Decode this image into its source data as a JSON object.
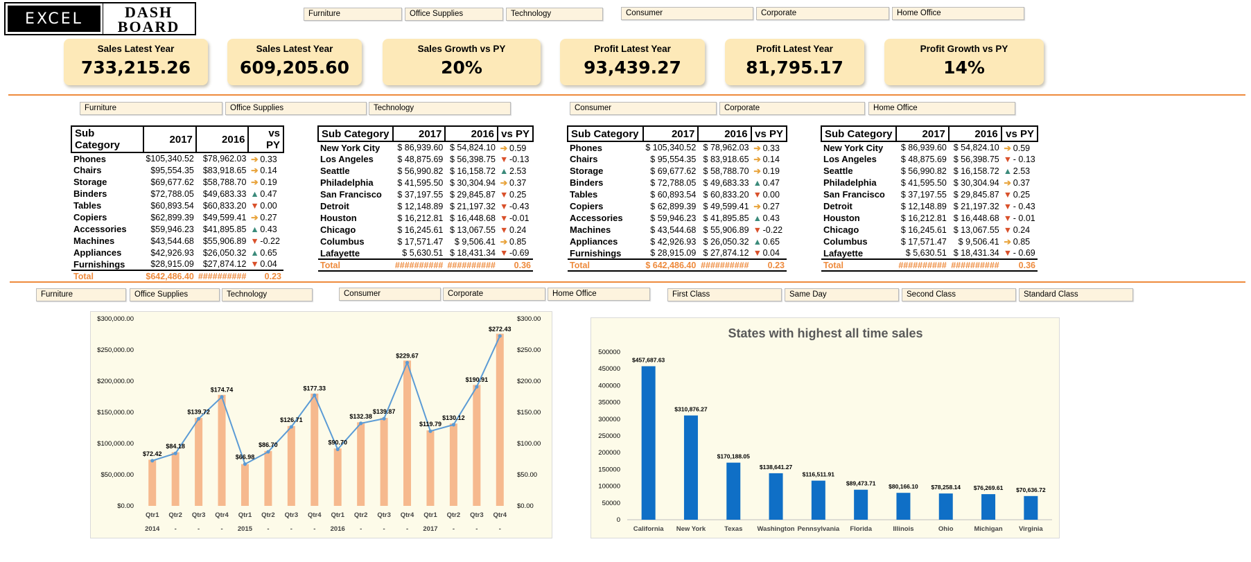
{
  "logo": {
    "left": "EXCEL",
    "right_line1": "DASH",
    "right_line2": "BOARD"
  },
  "slicers_top": [
    "Furniture",
    "Office Supplies",
    "Technology",
    "Consumer",
    "Corporate",
    "Home Office"
  ],
  "kpis": [
    {
      "title": "Sales Latest Year",
      "value": "733,215.26"
    },
    {
      "title": "Sales Latest Year",
      "value": "609,205.60"
    },
    {
      "title": "Sales Growth vs PY",
      "value": "20%"
    },
    {
      "title": "Profit Latest Year",
      "value": "93,439.27"
    },
    {
      "title": "Profit  Latest Year",
      "value": "81,795.17"
    },
    {
      "title": "Profit Growth vs PY",
      "value": "14%"
    }
  ],
  "slicers_mid": [
    "Furniture",
    "Office Supplies",
    "Technology",
    "Consumer",
    "Corporate",
    "Home Office"
  ],
  "tables": [
    {
      "headers": [
        "Sub Category",
        "2017",
        "2016",
        "vs PY"
      ],
      "rows": [
        [
          "Phones",
          "$105,340.52",
          "$78,962.03",
          "0.33",
          "side"
        ],
        [
          "Chairs",
          "$95,554.35",
          "$83,918.65",
          "0.14",
          "side"
        ],
        [
          "Storage",
          "$69,677.62",
          "$58,788.70",
          "0.19",
          "side"
        ],
        [
          "Binders",
          "$72,788.05",
          "$49,683.33",
          "0.47",
          "up"
        ],
        [
          "Tables",
          "$60,893.54",
          "$60,833.20",
          "0.00",
          "down"
        ],
        [
          "Copiers",
          "$62,899.39",
          "$49,599.41",
          "0.27",
          "side"
        ],
        [
          "Accessories",
          "$59,946.23",
          "$41,895.85",
          "0.43",
          "up"
        ],
        [
          "Machines",
          "$43,544.68",
          "$55,906.89",
          "-0.22",
          "down"
        ],
        [
          "Appliances",
          "$42,926.93",
          "$26,050.32",
          "0.65",
          "up"
        ],
        [
          "Furnishings",
          "$28,915.09",
          "$27,874.12",
          "0.04",
          "down"
        ]
      ],
      "total": [
        "Total",
        "$642,486.40",
        "##########",
        "0.23"
      ]
    },
    {
      "headers": [
        "Sub Category",
        "2017",
        "2016",
        "vs PY"
      ],
      "rows": [
        [
          "New York City",
          "$ 86,939.60",
          "$ 54,824.10",
          "0.59",
          "side"
        ],
        [
          "Los Angeles",
          "$ 48,875.69",
          "$ 56,398.75",
          "-0.13",
          "down"
        ],
        [
          "Seattle",
          "$ 56,990.82",
          "$ 16,158.72",
          "2.53",
          "up"
        ],
        [
          "Philadelphia",
          "$ 41,595.50",
          "$ 30,304.94",
          "0.37",
          "side"
        ],
        [
          "San Francisco",
          "$ 37,197.55",
          "$ 29,845.87",
          "0.25",
          "down"
        ],
        [
          "Detroit",
          "$ 12,148.89",
          "$ 21,197.32",
          "-0.43",
          "down"
        ],
        [
          "Houston",
          "$ 16,212.81",
          "$ 16,448.68",
          "-0.01",
          "down"
        ],
        [
          "Chicago",
          "$ 16,245.61",
          "$ 13,067.55",
          "0.24",
          "down"
        ],
        [
          "Columbus",
          "$ 17,571.47",
          "$   9,506.41",
          "0.85",
          "side"
        ],
        [
          "Lafayette",
          "$   5,630.51",
          "$ 18,431.34",
          "-0.69",
          "down"
        ]
      ],
      "total": [
        "Total",
        "##########",
        "##########",
        "0.36"
      ]
    },
    {
      "headers": [
        "Sub Category",
        "2017",
        "2016",
        "vs PY"
      ],
      "rows": [
        [
          "Phones",
          "$  105,340.52",
          "$ 78,962.03",
          "0.33",
          "side"
        ],
        [
          "Chairs",
          "$    95,554.35",
          "$ 83,918.65",
          "0.14",
          "side"
        ],
        [
          "Storage",
          "$    69,677.62",
          "$ 58,788.70",
          "0.19",
          "side"
        ],
        [
          "Binders",
          "$    72,788.05",
          "$ 49,683.33",
          "0.47",
          "up"
        ],
        [
          "Tables",
          "$    60,893.54",
          "$ 60,833.20",
          "0.00",
          "down"
        ],
        [
          "Copiers",
          "$    62,899.39",
          "$ 49,599.41",
          "0.27",
          "side"
        ],
        [
          "Accessories",
          "$    59,946.23",
          "$ 41,895.85",
          "0.43",
          "up"
        ],
        [
          "Machines",
          "$    43,544.68",
          "$ 55,906.89",
          "-0.22",
          "down"
        ],
        [
          "Appliances",
          "$    42,926.93",
          "$ 26,050.32",
          "0.65",
          "up"
        ],
        [
          "Furnishings",
          "$    28,915.09",
          "$ 27,874.12",
          "0.04",
          "down"
        ]
      ],
      "total": [
        "Total",
        "$ 642,486.40",
        "##########",
        "0.23"
      ]
    },
    {
      "headers": [
        "Sub Category",
        "2017",
        "2016",
        "vs PY"
      ],
      "rows": [
        [
          "New York City",
          "$ 86,939.60",
          "$ 54,824.10",
          "0.59",
          "side"
        ],
        [
          "Los Angeles",
          "$ 48,875.69",
          "$ 56,398.75",
          "- 0.13",
          "down"
        ],
        [
          "Seattle",
          "$ 56,990.82",
          "$ 16,158.72",
          "2.53",
          "up"
        ],
        [
          "Philadelphia",
          "$ 41,595.50",
          "$ 30,304.94",
          "0.37",
          "side"
        ],
        [
          "San Francisco",
          "$ 37,197.55",
          "$ 29,845.87",
          "0.25",
          "down"
        ],
        [
          "Detroit",
          "$ 12,148.89",
          "$ 21,197.32",
          "- 0.43",
          "down"
        ],
        [
          "Houston",
          "$ 16,212.81",
          "$ 16,448.68",
          "- 0.01",
          "down"
        ],
        [
          "Chicago",
          "$ 16,245.61",
          "$ 13,067.55",
          "0.24",
          "down"
        ],
        [
          "Columbus",
          "$ 17,571.47",
          "$   9,506.41",
          "0.85",
          "side"
        ],
        [
          "Lafayette",
          "$   5,630.51",
          "$ 18,431.34",
          "- 0.69",
          "down"
        ]
      ],
      "total": [
        "Total",
        "##########",
        "##########",
        "0.36"
      ]
    }
  ],
  "slicers_bottom": [
    "Furniture",
    "Office Supplies",
    "Technology",
    "Consumer",
    "Corporate",
    "Home Office",
    "First Class",
    "Same Day",
    "Second Class",
    "Standard Class"
  ],
  "colors": {
    "accent": "#ee8a3c",
    "kpi_bg": "#fde9b8",
    "up": "#3a8a7a",
    "down": "#d9502a",
    "side": "#e8a33a",
    "bar_orange": "#f6b98e",
    "line_blue": "#5b9bd5",
    "bar_blue": "#0f6fc6"
  },
  "chart_data": [
    {
      "type": "bar",
      "title": "",
      "categories": [
        "Qtr1",
        "Qtr2",
        "Qtr3",
        "Qtr4",
        "Qtr1",
        "Qtr2",
        "Qtr3",
        "Qtr4",
        "Qtr1",
        "Qtr2",
        "Qtr3",
        "Qtr4",
        "Qtr1",
        "Qtr2",
        "Qtr3",
        "Qtr4"
      ],
      "year_labels": [
        "2014",
        "-",
        "-",
        "-",
        "2015",
        "-",
        "-",
        "-",
        "2016",
        "-",
        "-",
        "-",
        "2017",
        "-",
        "-",
        "-"
      ],
      "series": [
        {
          "type": "bar",
          "values": [
            74000,
            86000,
            141000,
            178000,
            67000,
            88000,
            128000,
            180000,
            92000,
            134000,
            141000,
            233000,
            121000,
            132000,
            194000,
            276000
          ]
        },
        {
          "type": "line",
          "values": [
            72.42,
            84.18,
            139.72,
            174.74,
            66.98,
            86.7,
            126.71,
            177.33,
            90.7,
            132.38,
            139.87,
            229.67,
            119.79,
            130.12,
            190.91,
            272.43
          ]
        }
      ],
      "data_labels": [
        "$72.42",
        "$84.18",
        "$139.72",
        "$174.74",
        "$66.98",
        "$86.70",
        "$126.71",
        "$177.33",
        "$90.70",
        "$132.38",
        "$139.87",
        "$229.67",
        "$119.79",
        "$130.12",
        "$190.91",
        "$272.43"
      ],
      "left_axis_ticks": [
        "$0.00",
        "$50,000.00",
        "$100,000.00",
        "$150,000.00",
        "$200,000.00",
        "$250,000.00",
        "$300,000.00"
      ],
      "right_axis_ticks": [
        "$0.00",
        "$50.00",
        "$100.00",
        "$150.00",
        "$200.00",
        "$250.00",
        "$300.00"
      ],
      "ylim": [
        0,
        300000
      ],
      "ylim_right": [
        0,
        300
      ]
    },
    {
      "type": "bar",
      "title": "States with highest all time sales",
      "categories": [
        "California",
        "New York",
        "Texas",
        "Washington",
        "Pennsylvania",
        "Florida",
        "Illinois",
        "Ohio",
        "Michigan",
        "Virginia"
      ],
      "values": [
        457687.63,
        310876.27,
        170188.05,
        138641.27,
        116511.91,
        89473.71,
        80166.1,
        78258.14,
        76269.61,
        70636.72
      ],
      "data_labels": [
        "$457,687.63",
        "$310,876.27",
        "$170,188.05",
        "$138,641.27",
        "$116,511.91",
        "$89,473.71",
        "$80,166.10",
        "$78,258.14",
        "$76,269.61",
        "$70,636.72"
      ],
      "y_ticks": [
        "0",
        "50000",
        "100000",
        "150000",
        "200000",
        "250000",
        "300000",
        "350000",
        "400000",
        "450000",
        "500000"
      ],
      "ylim": [
        0,
        500000
      ]
    }
  ]
}
